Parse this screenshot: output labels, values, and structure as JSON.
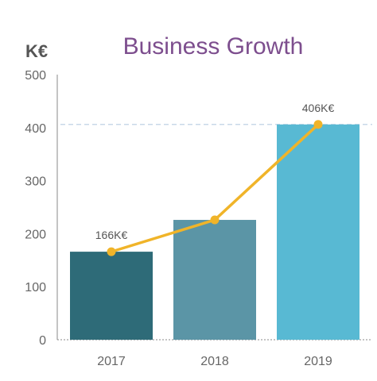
{
  "chart_data": {
    "type": "bar",
    "title": "Business Growth",
    "ylabel": "K€",
    "xlabel": "",
    "categories": [
      "2017",
      "2018",
      "2019"
    ],
    "values": [
      166,
      226,
      406
    ],
    "bar_colors": [
      "#2e6b78",
      "#5b95a6",
      "#58b9d3"
    ],
    "line_series": {
      "values": [
        166,
        226,
        406
      ],
      "color": "#f0b429"
    },
    "data_labels": [
      {
        "category": "2017",
        "text": "166K€"
      },
      {
        "category": "2019",
        "text": "406K€"
      }
    ],
    "yticks": [
      "0",
      "100",
      "200",
      "300",
      "400",
      "500"
    ],
    "ylim": [
      0,
      500
    ],
    "reference_line_value": 406,
    "grid": false,
    "legend": "none",
    "colors": {
      "title": "#7d4e8e",
      "axis": "#888888",
      "reference_line": "#c8d8e8"
    }
  }
}
